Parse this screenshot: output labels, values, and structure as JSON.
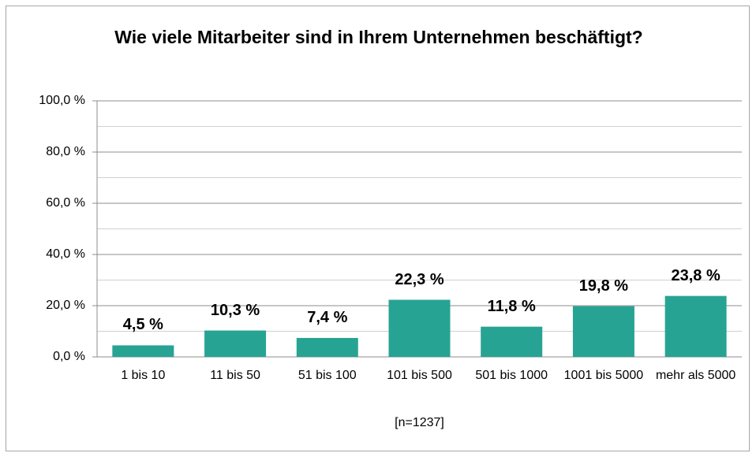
{
  "chart_data": {
    "type": "bar",
    "title": "Wie viele Mitarbeiter sind in Ihrem Unternehmen beschäftigt?",
    "categories": [
      "1 bis 10",
      "11 bis 50",
      "51 bis 100",
      "101 bis 500",
      "501 bis 1000",
      "1001 bis 5000",
      "mehr als 5000"
    ],
    "values": [
      4.5,
      10.3,
      7.4,
      22.3,
      11.8,
      19.8,
      23.8
    ],
    "value_labels": [
      "4,5 %",
      "10,3 %",
      "7,4 %",
      "22,3 %",
      "11,8 %",
      "19,8 %",
      "23,8 %"
    ],
    "color": "#27a393",
    "ylim": [
      0,
      100
    ],
    "yticks": [
      {
        "value": 0,
        "label": "0,0 %"
      },
      {
        "value": 20,
        "label": "20,0 %"
      },
      {
        "value": 40,
        "label": "40,0 %"
      },
      {
        "value": 60,
        "label": "60,0 %"
      },
      {
        "value": 80,
        "label": "80,0 %"
      },
      {
        "value": 100,
        "label": "100,0 %"
      }
    ],
    "minor_yticks": [
      10,
      30,
      50,
      70,
      90
    ],
    "grid": true,
    "footnote": "[n=1237]"
  }
}
